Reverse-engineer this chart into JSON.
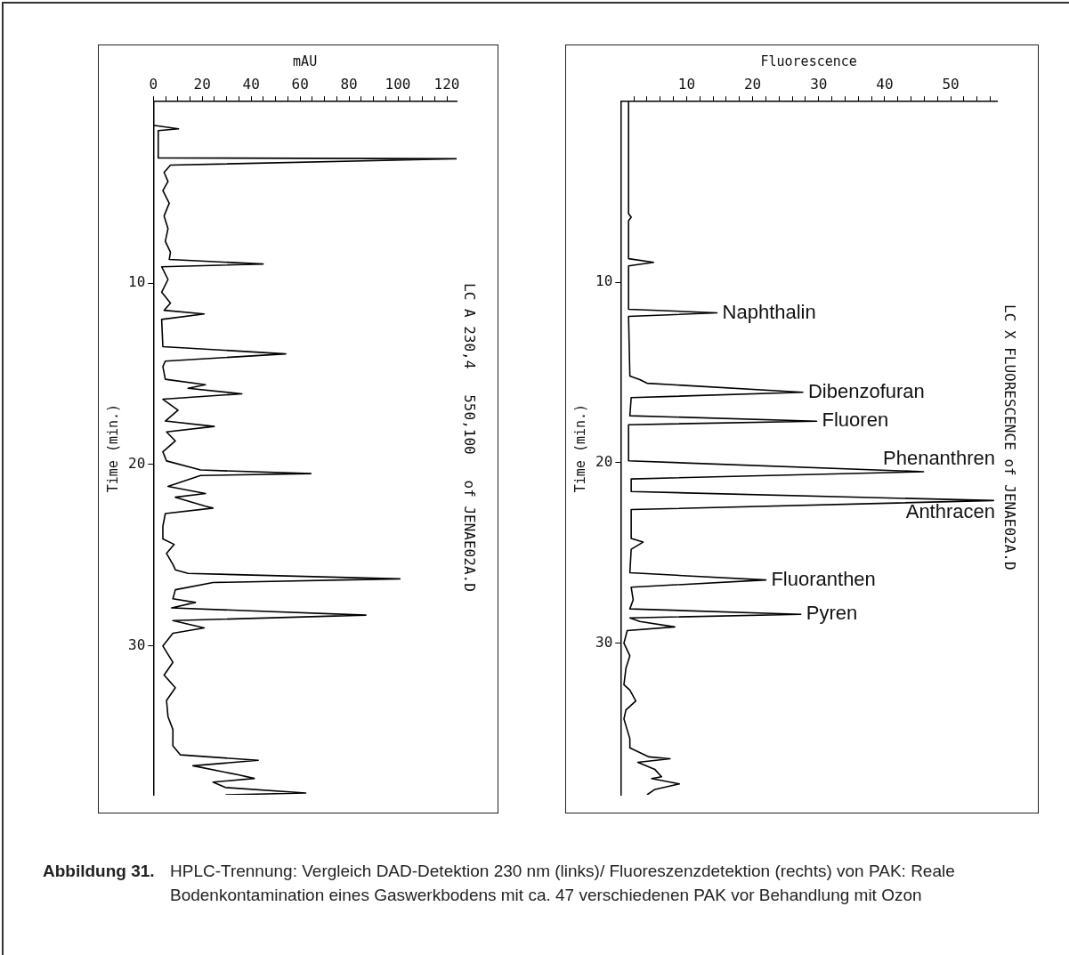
{
  "chart_data": [
    {
      "type": "line",
      "orientation": "horizontal",
      "title": "LC A 230,4   550,100   of JENAE02A.D",
      "xlabel": "mAU",
      "ylabel": "Time (min.)",
      "xlim": [
        0,
        124
      ],
      "ylim": [
        38.2,
        0
      ],
      "xticks": [
        0,
        {
          "value": 5,
          "label": null
        },
        {
          "value": 10,
          "label": null
        },
        {
          "value": 15,
          "label": null
        },
        20,
        {
          "value": 25,
          "label": null
        },
        {
          "value": 30,
          "label": null
        },
        {
          "value": 35,
          "label": null
        },
        40,
        {
          "value": 45,
          "label": null
        },
        {
          "value": 50,
          "label": null
        },
        {
          "value": 55,
          "label": null
        },
        60,
        {
          "value": 65,
          "label": null
        },
        {
          "value": 70,
          "label": null
        },
        {
          "value": 75,
          "label": null
        },
        80,
        {
          "value": 85,
          "label": null
        },
        {
          "value": 90,
          "label": null
        },
        {
          "value": 95,
          "label": null
        },
        100,
        {
          "value": 105,
          "label": null
        },
        {
          "value": 110,
          "label": null
        },
        {
          "value": 115,
          "label": null
        },
        120
      ],
      "yticks": [
        10,
        20,
        30
      ],
      "series": [
        {
          "color": "#000000",
          "x": [
            0,
            1.3,
            1.5,
            1.6,
            2.8,
            3.1,
            3.15,
            3.5,
            3.9,
            4.4,
            4.9,
            5.6,
            6.3,
            7.0,
            7.7,
            8.3,
            8.7,
            8.95,
            9.1,
            9.8,
            10.5,
            11.1,
            11.5,
            11.7,
            12.0,
            13.5,
            13.9,
            14.3,
            14.6,
            15.3,
            15.6,
            15.8,
            16.1,
            16.4,
            17.0,
            17.6,
            17.9,
            18.2,
            18.7,
            19.3,
            19.8,
            20.3,
            20.5,
            20.6,
            21.2,
            21.6,
            21.8,
            22.3,
            22.4,
            22.7,
            23.4,
            24.1,
            24.4,
            24.9,
            25.5,
            25.8,
            26.0,
            26.3,
            26.5,
            26.9,
            27.4,
            27.6,
            27.9,
            28.3,
            28.6,
            29.0,
            29.3,
            30.0,
            30.9,
            31.6,
            32.3,
            33.0,
            33.9,
            34.6,
            35.5,
            36.0,
            36.3,
            36.6,
            37.1,
            37.3,
            37.5,
            37.8,
            38.1,
            38.2
          ],
          "values": [
            0,
            0,
            10.3,
            2,
            2,
            2,
            124,
            7,
            4.4,
            6,
            3.9,
            6.5,
            4.4,
            6,
            4.9,
            7,
            6.5,
            44.9,
            3.4,
            6,
            3.4,
            7,
            4.4,
            20.8,
            3.4,
            3.9,
            54.1,
            4.9,
            3.9,
            4.9,
            21.3,
            14.2,
            36.2,
            3.9,
            10.1,
            4.9,
            24.9,
            5.4,
            9,
            3.9,
            5.4,
            19.3,
            64.4,
            19.3,
            6,
            21.3,
            9,
            21.3,
            24.4,
            4.9,
            3.9,
            3.9,
            8.5,
            5.4,
            8,
            9,
            14.2,
            100.8,
            24.4,
            9,
            8,
            17.2,
            7.5,
            86.9,
            8,
            20.8,
            8,
            3.9,
            8,
            4.4,
            9,
            5.4,
            6,
            8,
            8,
            11.1,
            42.9,
            16.2,
            34.7,
            41.3,
            24.4,
            29.5,
            62.3,
            29.5
          ]
        }
      ],
      "annotations": [
        "Abbildung 31.",
        "HPLC-Trennung: Vergleich DAD-Detektion 230 nm (links)/ Fluoreszenzdetektion (rechts) von PAK:   Reale Bodenkontamination eines Gaswerkbodens mit ca. 47 verschiedenen PAK vor Behandlung mit Ozon"
      ]
    },
    {
      "type": "line",
      "orientation": "horizontal",
      "title": "LC X FLUORESCENCE of JENAE02A.D",
      "xlabel": "Fluorescence",
      "ylabel": "Time (min.)",
      "xlim": [
        0,
        57
      ],
      "ylim": [
        38.4,
        0
      ],
      "xticks": [
        {
          "value": 2,
          "label": null
        },
        {
          "value": 4,
          "label": null
        },
        {
          "value": 6,
          "label": null
        },
        {
          "value": 8,
          "label": null
        },
        10,
        {
          "value": 12,
          "label": null
        },
        {
          "value": 14,
          "label": null
        },
        {
          "value": 16,
          "label": null
        },
        {
          "value": 18,
          "label": null
        },
        20,
        {
          "value": 22,
          "label": null
        },
        {
          "value": 24,
          "label": null
        },
        {
          "value": 26,
          "label": null
        },
        {
          "value": 28,
          "label": null
        },
        30,
        {
          "value": 32,
          "label": null
        },
        {
          "value": 34,
          "label": null
        },
        {
          "value": 36,
          "label": null
        },
        {
          "value": 38,
          "label": null
        },
        40,
        {
          "value": 42,
          "label": null
        },
        {
          "value": 44,
          "label": null
        },
        {
          "value": 46,
          "label": null
        },
        {
          "value": 48,
          "label": null
        },
        50,
        {
          "value": 52,
          "label": null
        },
        {
          "value": 54,
          "label": null
        },
        {
          "value": 56,
          "label": null
        }
      ],
      "yticks": [
        10,
        20,
        30
      ],
      "series": [
        {
          "color": "#000000",
          "x": [
            0,
            6.2,
            6.4,
            6.6,
            8.7,
            8.9,
            9.1,
            11.5,
            11.7,
            11.9,
            15.2,
            15.4,
            15.6,
            16.1,
            16.4,
            17.4,
            17.7,
            17.9,
            19.9,
            20.5,
            20.9,
            21.6,
            22.1,
            22.6,
            24.2,
            24.4,
            24.8,
            26.1,
            26.5,
            26.9,
            27.6,
            28.1,
            28.4,
            28.6,
            28.8,
            29.1,
            29.3,
            30.0,
            30.7,
            31.4,
            32.3,
            32.6,
            33.2,
            33.7,
            34.2,
            35.3,
            35.8,
            36.3,
            36.4,
            36.6,
            37.0,
            37.4,
            37.5,
            37.8,
            38.1,
            38.4
          ],
          "values": [
            1.2,
            1.2,
            1.6,
            1.2,
            1.2,
            5,
            1.2,
            1.2,
            14.6,
            1.2,
            1.4,
            2.9,
            4,
            27.6,
            1.6,
            1.4,
            29.7,
            1.2,
            1.2,
            45.9,
            1.6,
            1.6,
            56.5,
            1.6,
            1.6,
            3.4,
            1.6,
            1.4,
            22,
            1.6,
            1.9,
            1.4,
            27.3,
            1.4,
            2.9,
            8.2,
            1,
            0.5,
            1.4,
            0.8,
            0.5,
            1.4,
            2.3,
            0.8,
            0.5,
            1.4,
            1.4,
            4.3,
            7.5,
            2.6,
            5.2,
            6.2,
            4.7,
            8.9,
            5.2,
            4
          ]
        }
      ],
      "annotations": [
        {
          "text": "Naphthalin",
          "x": 14.6,
          "y": 11.7
        },
        {
          "text": "Dibenzofuran",
          "x": 27.6,
          "y": 16.1
        },
        {
          "text": "Fluoren",
          "x": 29.7,
          "y": 17.7
        },
        {
          "text": "Phenanthren",
          "x": 45.9,
          "y": 20.5
        },
        {
          "text": "Anthracen",
          "x": 56.5,
          "y": 22.1
        },
        {
          "text": "Fluoranthen",
          "x": 22,
          "y": 26.5
        },
        {
          "text": "Pyren",
          "x": 27.3,
          "y": 28.4
        }
      ]
    }
  ]
}
